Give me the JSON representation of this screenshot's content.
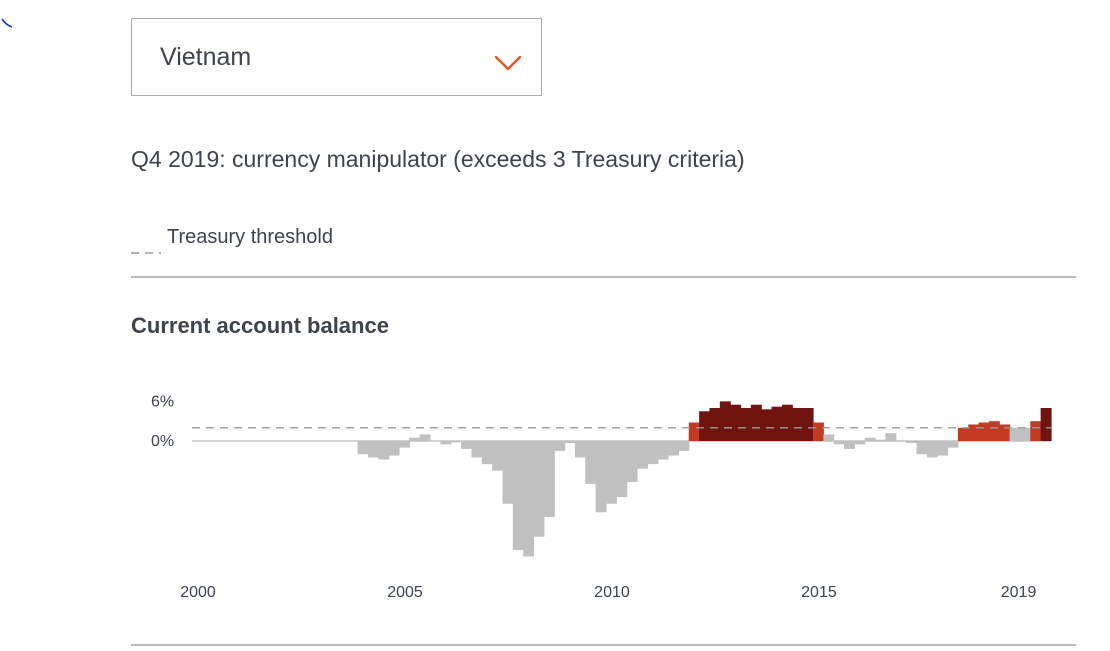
{
  "selector": {
    "value": "Vietnam",
    "chevron_icon": "chevron-down-icon",
    "chevron_color": "#e0562b"
  },
  "status_text": "Q4 2019: currency manipulator (exceeds 3 Treasury criteria)",
  "legend": {
    "dash_label": "Treasury threshold",
    "dash_color": "#9a9a9a"
  },
  "colors": {
    "below_threshold": "#c0c0c0",
    "exceeds_threshold": "#c23a22",
    "exceeds_all_criteria": "#701410"
  },
  "chart_data": {
    "type": "bar",
    "title": "Current account balance",
    "y_tick_labels": [
      "6%",
      "0%"
    ],
    "y_ticks": [
      6,
      0
    ],
    "x_tick_labels": [
      "2000",
      "2005",
      "2010",
      "2015",
      "2019"
    ],
    "x_ticks": [
      2000,
      2005,
      2010,
      2015,
      2019
    ],
    "threshold": 2,
    "ylim": [
      -18.5,
      7
    ],
    "x_start": 2000,
    "quarters_per_year": 4,
    "values": [
      0,
      0,
      0,
      0,
      0,
      0,
      0,
      0,
      0,
      0,
      0,
      0,
      0,
      0,
      0,
      0,
      -2,
      -2.5,
      -2.8,
      -2.2,
      -1,
      0.5,
      1,
      0,
      -0.5,
      -0.2,
      -1.2,
      -2.5,
      -3.5,
      -4.5,
      -9.5,
      -16.5,
      -17.5,
      -14.5,
      -11.5,
      -1.5,
      -0.3,
      -2.5,
      -6.5,
      -10.8,
      -9.5,
      -8.5,
      -6.2,
      -4.2,
      -3.5,
      -2.8,
      -2.2,
      -1.5,
      2.8,
      4.5,
      5,
      6,
      5.5,
      5,
      5.5,
      4.8,
      5.2,
      5.5,
      5,
      5,
      2.8,
      1,
      -0.5,
      -1.2,
      -0.5,
      0.5,
      0.2,
      1.2,
      0,
      -0.3,
      -2,
      -2.5,
      -2.2,
      -1,
      2,
      2.5,
      2.8,
      3,
      2.5,
      2,
      2,
      3,
      5
    ],
    "series_level": [
      0,
      0,
      0,
      0,
      0,
      0,
      0,
      0,
      0,
      0,
      0,
      0,
      0,
      0,
      0,
      0,
      0,
      0,
      0,
      0,
      0,
      0,
      0,
      0,
      0,
      0,
      0,
      0,
      0,
      0,
      0,
      0,
      0,
      0,
      0,
      0,
      0,
      0,
      0,
      0,
      0,
      0,
      0,
      0,
      0,
      0,
      0,
      0,
      1,
      2,
      2,
      2,
      2,
      2,
      2,
      2,
      2,
      2,
      2,
      2,
      1,
      0,
      0,
      0,
      0,
      0,
      0,
      0,
      0,
      0,
      0,
      0,
      0,
      0,
      1,
      1,
      1,
      1,
      1,
      0,
      0,
      1,
      2
    ]
  }
}
